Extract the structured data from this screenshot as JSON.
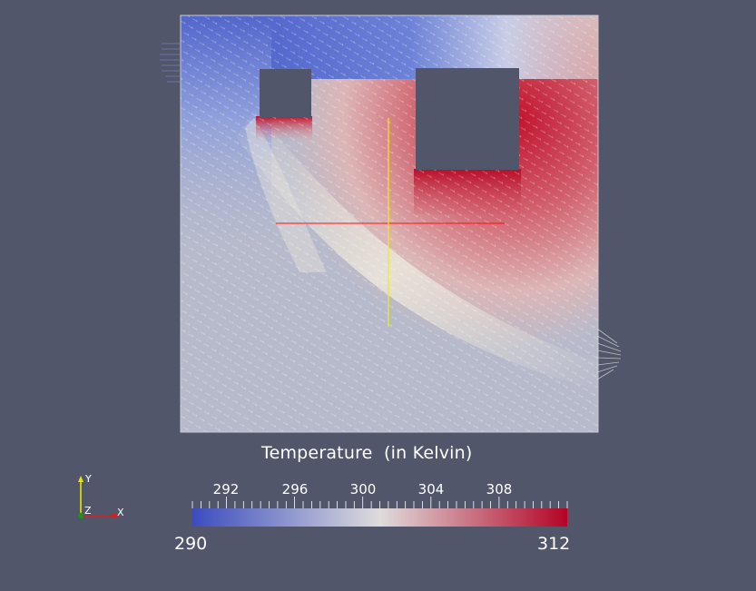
{
  "scene": {
    "background_color": "#51566a",
    "domain_fill": "#b9bccb",
    "obstacle_fill": "#51566a"
  },
  "colorbar": {
    "title": "Temperature  (in Kelvin)",
    "min_label": "290",
    "max_label": "312",
    "min": 290,
    "max": 312,
    "tick_labels": [
      "292",
      "296",
      "300",
      "304",
      "308"
    ],
    "colors": {
      "low": "#3b4cc0",
      "mid": "#dddddd",
      "high": "#b40426"
    }
  },
  "axes": {
    "x_label": "X",
    "y_label": "Y",
    "z_label": "Z"
  },
  "probe_lines": {
    "horizontal_color": "#ff0000",
    "vertical_color": "#ffff00"
  }
}
